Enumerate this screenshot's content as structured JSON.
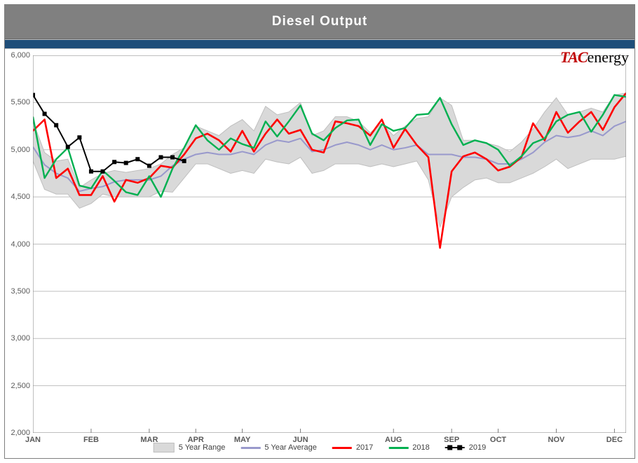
{
  "title": "Diesel  Output",
  "logo_tac": "TAC",
  "logo_energy": "energy",
  "chart": {
    "type": "line",
    "background_color": "#ffffff",
    "ylim": [
      2000,
      6000
    ],
    "ytick_step": 500,
    "yticks": [
      2000,
      2500,
      3000,
      3500,
      4000,
      4500,
      5000,
      5500,
      6000
    ],
    "ytick_labels": [
      "2,000",
      "2,500",
      "3,000",
      "3,500",
      "4,000",
      "4,500",
      "5,000",
      "5,500",
      "6,000"
    ],
    "xticks": [
      0,
      5,
      10,
      14,
      18,
      23,
      31,
      36,
      40,
      45,
      50
    ],
    "xtick_labels": [
      "JAN",
      "FEB",
      "MAR",
      "APR",
      "MAY",
      "JUN",
      "AUG",
      "SEP",
      "OCT",
      "NOV",
      "DEC"
    ],
    "n_points": 52,
    "grid_color": "#bfbfbf",
    "tick_color": "#7f7f7f",
    "range_high": [
      5300,
      4970,
      4880,
      4900,
      4600,
      4680,
      4750,
      4780,
      4760,
      4780,
      4800,
      4850,
      4950,
      5020,
      5250,
      5200,
      5150,
      5250,
      5320,
      5200,
      5460,
      5370,
      5400,
      5500,
      5150,
      5200,
      5350,
      5350,
      5300,
      5180,
      5280,
      5150,
      5250,
      5330,
      5350,
      5550,
      5470,
      5100,
      5100,
      5070,
      5040,
      4980,
      5080,
      5220,
      5400,
      5550,
      5370,
      5400,
      5440,
      5400,
      5580,
      5600
    ],
    "range_low": [
      4880,
      4580,
      4530,
      4530,
      4380,
      4430,
      4530,
      4500,
      4500,
      4500,
      4500,
      4560,
      4550,
      4700,
      4850,
      4850,
      4800,
      4750,
      4780,
      4750,
      4900,
      4870,
      4850,
      4920,
      4750,
      4780,
      4850,
      4850,
      4850,
      4820,
      4850,
      4820,
      4850,
      4880,
      4680,
      4180,
      4500,
      4600,
      4680,
      4700,
      4650,
      4650,
      4700,
      4750,
      4820,
      4900,
      4800,
      4850,
      4900,
      4900,
      4900,
      4930
    ],
    "avg": [
      5030,
      4840,
      4750,
      4700,
      4560,
      4590,
      4610,
      4660,
      4680,
      4680,
      4680,
      4720,
      4830,
      4900,
      4950,
      4970,
      4950,
      4950,
      4980,
      4950,
      5050,
      5100,
      5080,
      5120,
      4980,
      5000,
      5050,
      5080,
      5050,
      5000,
      5050,
      5000,
      5020,
      5050,
      4950,
      4950,
      4950,
      4920,
      4920,
      4900,
      4850,
      4850,
      4900,
      4970,
      5080,
      5150,
      5130,
      5150,
      5200,
      5150,
      5250,
      5300
    ],
    "y2017": [
      5200,
      5320,
      4700,
      4800,
      4520,
      4520,
      4720,
      4450,
      4680,
      4650,
      4700,
      4830,
      4810,
      4950,
      5120,
      5170,
      5100,
      4980,
      5200,
      4980,
      5170,
      5320,
      5170,
      5210,
      5000,
      4970,
      5300,
      5280,
      5250,
      5150,
      5320,
      5020,
      5220,
      5050,
      4920,
      3960,
      4770,
      4930,
      4970,
      4900,
      4780,
      4820,
      4920,
      5280,
      5100,
      5400,
      5180,
      5300,
      5400,
      5210,
      5450,
      5600
    ],
    "y2018": [
      5350,
      4700,
      4900,
      5020,
      4620,
      4590,
      4780,
      4670,
      4550,
      4520,
      4720,
      4500,
      4800,
      5020,
      5260,
      5100,
      5000,
      5120,
      5060,
      5020,
      5300,
      5140,
      5300,
      5470,
      5170,
      5100,
      5230,
      5310,
      5320,
      5050,
      5270,
      5200,
      5230,
      5370,
      5380,
      5550,
      5270,
      5050,
      5100,
      5070,
      5000,
      4830,
      4930,
      5070,
      5120,
      5300,
      5370,
      5400,
      5190,
      5370,
      5580,
      5560
    ],
    "y2019": [
      5580,
      5380,
      5260,
      5030,
      5130,
      4770,
      4770,
      4870,
      4860,
      4900,
      4830,
      4920,
      4920,
      4880
    ],
    "colors": {
      "range_fill": "#d9d9d9",
      "range_stroke": "#bfbfbf",
      "avg": "#9999cc",
      "2017": "#ff0000",
      "2018": "#00b050",
      "2019": "#000000"
    },
    "line_widths": {
      "avg": 2.0,
      "2017": 2.6,
      "2018": 2.4,
      "2019": 2.0
    },
    "marker_2019": {
      "shape": "square",
      "size": 6
    },
    "legend": [
      {
        "label": "5 Year Range",
        "type": "area"
      },
      {
        "label": "5 Year Average",
        "type": "line",
        "color": "#9999cc"
      },
      {
        "label": "2017",
        "type": "line",
        "color": "#ff0000"
      },
      {
        "label": "2018",
        "type": "line",
        "color": "#00b050"
      },
      {
        "label": "2019",
        "type": "line-marker",
        "color": "#000000"
      }
    ]
  }
}
